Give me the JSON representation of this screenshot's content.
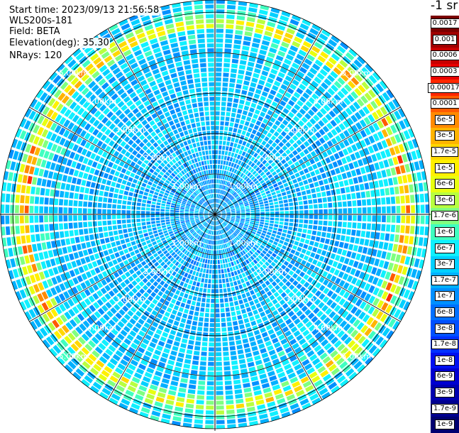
{
  "header": {
    "start_time": "Start time: 2023/09/13 21:56:58",
    "instrument": "WLS200s-181",
    "field": "Field: BETA",
    "elevation": "Elevation(deg): 35.30",
    "nrays": "NRays: 120"
  },
  "legend": {
    "unit": "-1 sr",
    "entries": [
      {
        "label": "0.0017",
        "color": "#7a0000"
      },
      {
        "label": "0.001",
        "color": "#a00000"
      },
      {
        "label": "0.0006",
        "color": "#c80000"
      },
      {
        "label": "0.0003",
        "color": "#e80000"
      },
      {
        "label": "0.00017",
        "color": "#ff2800"
      },
      {
        "label": "0.0001",
        "color": "#ff5a00"
      },
      {
        "label": "6e-5",
        "color": "#ff8a00"
      },
      {
        "label": "3e-5",
        "color": "#ffb400"
      },
      {
        "label": "1.7e-5",
        "color": "#ffd800"
      },
      {
        "label": "1e-5",
        "color": "#fff000"
      },
      {
        "label": "6e-6",
        "color": "#e8ff10"
      },
      {
        "label": "3e-6",
        "color": "#b8ff40"
      },
      {
        "label": "1.7e-6",
        "color": "#80ff80"
      },
      {
        "label": "1e-6",
        "color": "#40ffc0"
      },
      {
        "label": "6e-7",
        "color": "#10f0ff"
      },
      {
        "label": "3e-7",
        "color": "#00d0ff"
      },
      {
        "label": "1.7e-7",
        "color": "#00b0ff"
      },
      {
        "label": "1e-7",
        "color": "#0090ff"
      },
      {
        "label": "6e-8",
        "color": "#0070ff"
      },
      {
        "label": "3e-8",
        "color": "#0050ff"
      },
      {
        "label": "1.7e-8",
        "color": "#0030ff"
      },
      {
        "label": "1e-8",
        "color": "#0010f0"
      },
      {
        "label": "6e-9",
        "color": "#0000d0"
      },
      {
        "label": "3e-9",
        "color": "#0000b0"
      },
      {
        "label": "1.7e-9",
        "color": "#000090"
      },
      {
        "label": "1e-9",
        "color": "#000070"
      }
    ]
  },
  "chart_data": {
    "type": "heatmap",
    "projection": "polar PPI scan",
    "field": "BETA",
    "nrays": 120,
    "range_rings_km": [
      1.0,
      2.0,
      3.0,
      4.0,
      5.0
    ],
    "ring_labels": [
      "1.00km",
      "2.00km",
      "3.00km",
      "4.00km",
      "5.00km"
    ],
    "max_range_km": 5.3,
    "spoke_interval_deg": 30,
    "color_scale": "log",
    "color_range": [
      1e-09,
      0.0017
    ],
    "rings_profile": [
      {
        "r_km": 0.5,
        "value": 1e-07
      },
      {
        "r_km": 1.5,
        "value": 2e-07
      },
      {
        "r_km": 2.5,
        "value": 2e-07
      },
      {
        "r_km": 3.5,
        "value": 3e-07
      },
      {
        "r_km": 4.5,
        "value": 1e-06
      },
      {
        "r_km": 4.8,
        "value": 1e-05
      },
      {
        "r_km": 5.2,
        "value": 1e-06
      }
    ]
  }
}
